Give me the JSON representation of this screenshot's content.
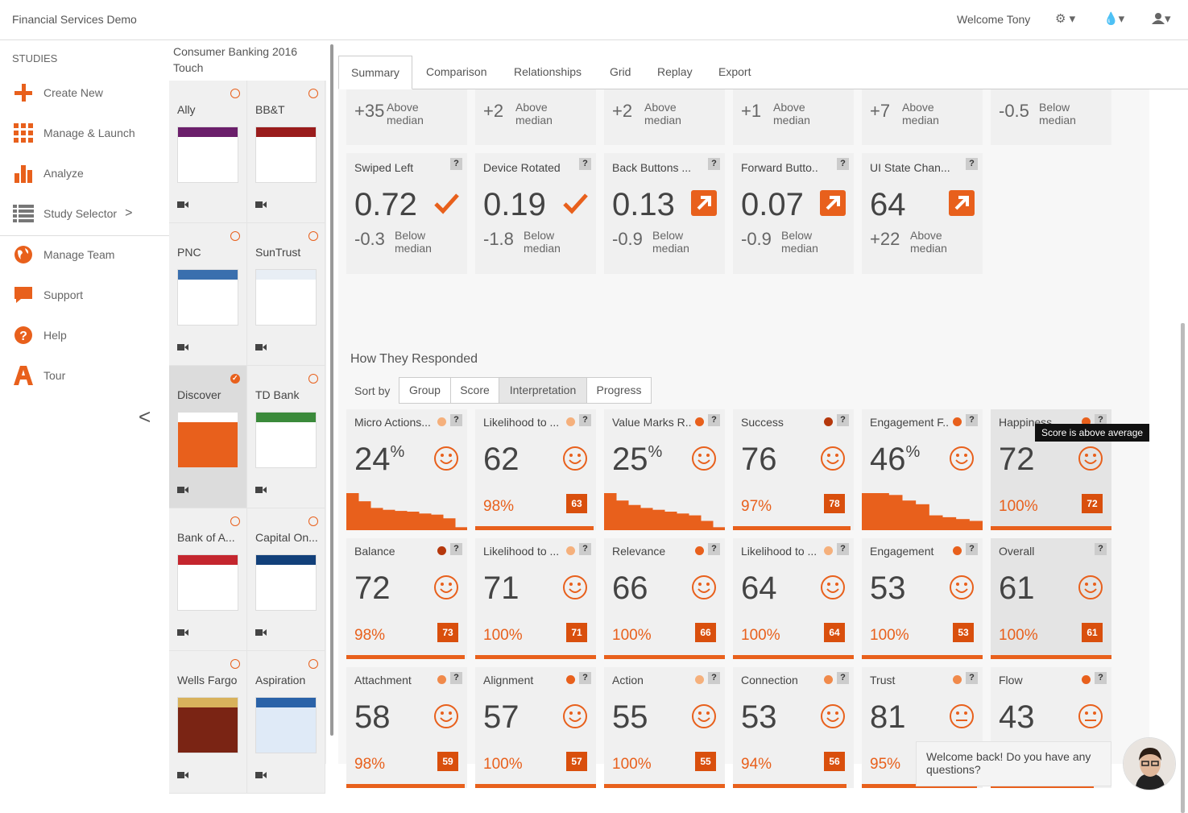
{
  "app": {
    "title": "Financial Services Demo",
    "welcome": "Welcome Tony"
  },
  "sidebar": {
    "section_label": "STUDIES",
    "items": [
      {
        "label": "Create New",
        "icon": "plus-icon"
      },
      {
        "label": "Manage & Launch",
        "icon": "grid-icon"
      },
      {
        "label": "Analyze",
        "icon": "bar-chart-icon"
      },
      {
        "label": "Study Selector",
        "icon": "list-icon"
      },
      {
        "label": "Manage Team",
        "icon": "globe-icon"
      },
      {
        "label": "Support",
        "icon": "chat-icon"
      },
      {
        "label": "Help",
        "icon": "question-icon"
      },
      {
        "label": "Tour",
        "icon": "tour-icon"
      }
    ],
    "study_selector_chevron": ">",
    "collapse_icon": "<"
  },
  "study": {
    "title": "Consumer Banking 2016 Touch",
    "tiles": [
      {
        "name": "Ally",
        "selected": false
      },
      {
        "name": "BB&T",
        "selected": false
      },
      {
        "name": "PNC",
        "selected": false
      },
      {
        "name": "SunTrust",
        "selected": false
      },
      {
        "name": "Discover",
        "selected": true
      },
      {
        "name": "TD Bank",
        "selected": false
      },
      {
        "name": "Bank of A...",
        "selected": false
      },
      {
        "name": "Capital On...",
        "selected": false
      },
      {
        "name": "Wells Fargo",
        "selected": false
      },
      {
        "name": "Aspiration",
        "selected": false
      }
    ]
  },
  "tabs": [
    "Summary",
    "Comparison",
    "Relationships",
    "Grid",
    "Replay",
    "Export"
  ],
  "top_medians": [
    {
      "value": "+35",
      "label": "Above median"
    },
    {
      "value": "+2",
      "label": "Above median"
    },
    {
      "value": "+2",
      "label": "Above median"
    },
    {
      "value": "+1",
      "label": "Above median"
    },
    {
      "value": "+7",
      "label": "Above median"
    },
    {
      "value": "-0.5",
      "label": "Below median"
    }
  ],
  "metrics": [
    {
      "title": "Swiped Left",
      "value": "0.72",
      "icon": "check-icon",
      "delta": "-0.3",
      "label": "Below median"
    },
    {
      "title": "Device Rotated",
      "value": "0.19",
      "icon": "check-icon",
      "delta": "-1.8",
      "label": "Below median"
    },
    {
      "title": "Back Buttons ...",
      "value": "0.13",
      "icon": "arrow-up-right-icon",
      "delta": "-0.9",
      "label": "Below median"
    },
    {
      "title": "Forward Butto..",
      "value": "0.07",
      "icon": "arrow-up-right-icon",
      "delta": "-0.9",
      "label": "Below median"
    },
    {
      "title": "UI State Chan...",
      "value": "64",
      "icon": "arrow-up-right-icon",
      "delta": "+22",
      "label": "Above median"
    }
  ],
  "responded": {
    "title": "How They Responded",
    "sort_label": "Sort by",
    "sort_options": [
      "Group",
      "Score",
      "Interpretation",
      "Progress"
    ],
    "sort_active": "Interpretation",
    "tooltip": "Score is above average",
    "cards": [
      {
        "title": "Micro Actions...",
        "score": "24",
        "unit": "%",
        "dot": "#f5b07c",
        "face": "smile",
        "pct": "",
        "bench": "",
        "hist": [
          1.0,
          0.78,
          0.6,
          0.55,
          0.52,
          0.5,
          0.45,
          0.42,
          0.32,
          0.08
        ]
      },
      {
        "title": "Likelihood to ...",
        "score": "62",
        "unit": "",
        "dot": "#f5b07c",
        "face": "smile",
        "pct": "98%",
        "bench": "63",
        "bar": 0.98
      },
      {
        "title": "Value Marks R..",
        "score": "25",
        "unit": "%",
        "dot": "#e8601c",
        "face": "smile",
        "pct": "",
        "bench": "",
        "hist": [
          1.0,
          0.8,
          0.68,
          0.6,
          0.55,
          0.5,
          0.45,
          0.4,
          0.25,
          0.08
        ]
      },
      {
        "title": "Success",
        "score": "76",
        "unit": "",
        "dot": "#b5380c",
        "face": "smile",
        "pct": "97%",
        "bench": "78",
        "bar": 0.97
      },
      {
        "title": "Engagement F..",
        "score": "46",
        "unit": "%",
        "dot": "#e8601c",
        "face": "smile",
        "pct": "",
        "bench": "",
        "hist": [
          1.0,
          1.0,
          0.95,
          0.8,
          0.7,
          0.4,
          0.35,
          0.3,
          0.25
        ]
      },
      {
        "title": "Happiness",
        "score": "72",
        "unit": "",
        "dot": "#e8601c",
        "face": "smile",
        "pct": "100%",
        "bench": "72",
        "bar": 1.0,
        "highlight": true
      },
      {
        "title": "Balance",
        "score": "72",
        "unit": "",
        "dot": "#b5380c",
        "face": "smile",
        "pct": "98%",
        "bench": "73",
        "bar": 0.98
      },
      {
        "title": "Likelihood to ...",
        "score": "71",
        "unit": "",
        "dot": "#f5b07c",
        "face": "smile",
        "pct": "100%",
        "bench": "71",
        "bar": 1.0
      },
      {
        "title": "Relevance",
        "score": "66",
        "unit": "",
        "dot": "#e8601c",
        "face": "smile",
        "pct": "100%",
        "bench": "66",
        "bar": 1.0
      },
      {
        "title": "Likelihood to ...",
        "score": "64",
        "unit": "",
        "dot": "#f5b07c",
        "face": "smile",
        "pct": "100%",
        "bench": "64",
        "bar": 1.0
      },
      {
        "title": "Engagement",
        "score": "53",
        "unit": "",
        "dot": "#e8601c",
        "face": "smile",
        "pct": "100%",
        "bench": "53",
        "bar": 1.0
      },
      {
        "title": "Overall",
        "score": "61",
        "unit": "",
        "dot": "",
        "face": "smile",
        "pct": "100%",
        "bench": "61",
        "bar": 1.0,
        "highlight": true
      },
      {
        "title": "Attachment",
        "score": "58",
        "unit": "",
        "dot": "#f08a4b",
        "face": "smile",
        "pct": "98%",
        "bench": "59",
        "bar": 0.98
      },
      {
        "title": "Alignment",
        "score": "57",
        "unit": "",
        "dot": "#e8601c",
        "face": "smile",
        "pct": "100%",
        "bench": "57",
        "bar": 1.0
      },
      {
        "title": "Action",
        "score": "55",
        "unit": "",
        "dot": "#f5b07c",
        "face": "smile",
        "pct": "100%",
        "bench": "55",
        "bar": 1.0
      },
      {
        "title": "Connection",
        "score": "53",
        "unit": "",
        "dot": "#f08a4b",
        "face": "smile",
        "pct": "94%",
        "bench": "56",
        "bar": 0.94
      },
      {
        "title": "Trust",
        "score": "81",
        "unit": "",
        "dot": "#f08a4b",
        "face": "neutral",
        "pct": "95%",
        "bench": "",
        "bar": 0.95
      },
      {
        "title": "Flow",
        "score": "43",
        "unit": "",
        "dot": "#e8601c",
        "face": "neutral",
        "pct": "",
        "bench": "",
        "bar": 0.85
      }
    ]
  },
  "chat": {
    "message": "Welcome back! Do you have any questions?"
  },
  "colors": {
    "accent": "#e8601c",
    "accent_dark": "#d94f0d"
  }
}
